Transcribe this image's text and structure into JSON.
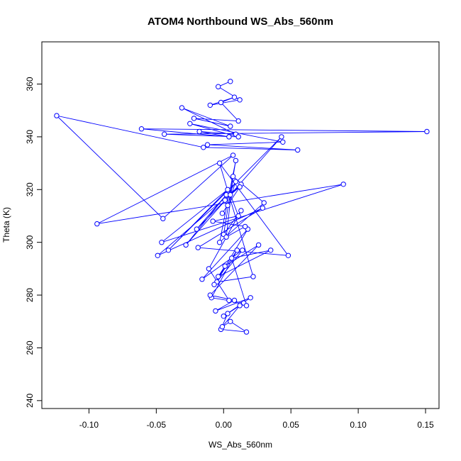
{
  "chart_data": {
    "type": "line",
    "title": "ATOM4 Northbound WS_Abs_560nm",
    "xlabel": "WS_Abs_560nm",
    "ylabel": "Theta (K)",
    "xlim": [
      -0.135,
      0.16
    ],
    "ylim": [
      237,
      376
    ],
    "xticks": [
      -0.1,
      -0.05,
      0.0,
      0.05,
      0.1,
      0.15
    ],
    "xtick_labels": [
      "-0.10",
      "-0.05",
      "0.00",
      "0.05",
      "0.10",
      "0.15"
    ],
    "yticks": [
      240,
      260,
      280,
      300,
      320,
      340,
      360
    ],
    "ytick_labels": [
      "240",
      "260",
      "280",
      "300",
      "320",
      "340",
      "360"
    ],
    "grid": false,
    "line_style": "b",
    "marker": "open-circle",
    "series_color": "#0000ff",
    "series": [
      {
        "x": [
          0.005,
          -0.004,
          0.012,
          -0.01,
          0.008,
          -0.002,
          0.011,
          -0.022,
          0.005,
          -0.031,
          0.009,
          -0.018,
          0.004,
          -0.061,
          0.151,
          -0.044,
          0.011,
          -0.025,
          0.044,
          -0.012,
          0.055,
          -0.015,
          -0.124,
          -0.045,
          0.007,
          -0.094,
          0.089,
          -0.046,
          0.003,
          -0.041,
          0.043,
          -0.028,
          0.002,
          -0.02,
          0.013,
          -0.049,
          0.029,
          -0.019,
          0.048,
          -0.003,
          0.022,
          -0.005,
          0.014,
          -0.016,
          0.018,
          -0.007,
          0.01,
          -0.009,
          0.015,
          0.003,
          -0.002,
          0.017,
          0.005,
          -0.001,
          0.012,
          0.0,
          0.02,
          -0.006,
          0.008,
          -0.01,
          0.026,
          0.001,
          -0.004,
          0.035,
          0.006,
          0.017,
          0.004,
          -0.011,
          0.013,
          0.0,
          0.009,
          -0.003,
          0.03,
          0.007,
          0.002,
          0.016,
          -0.008,
          0.011,
          0.005,
          0.012,
          -0.001,
          0.003,
          0.009,
          0.001
        ],
        "y": [
          361,
          359,
          354,
          352,
          355,
          353,
          346,
          347,
          344,
          351,
          341,
          342,
          340,
          343,
          342,
          341,
          340,
          345,
          338,
          337,
          335,
          336,
          348,
          309,
          333,
          307,
          322,
          300,
          320,
          297,
          340,
          299,
          318,
          305,
          322,
          295,
          313,
          298,
          295,
          330,
          287,
          285,
          297,
          286,
          305,
          284,
          297,
          279,
          277,
          273,
          267,
          266,
          270,
          268,
          276,
          272,
          279,
          274,
          278,
          280,
          299,
          291,
          287,
          297,
          294,
          276,
          278,
          290,
          312,
          303,
          331,
          300,
          315,
          325,
          302,
          306,
          308,
          310,
          318,
          321,
          311,
          314,
          323,
          316
        ]
      }
    ]
  }
}
